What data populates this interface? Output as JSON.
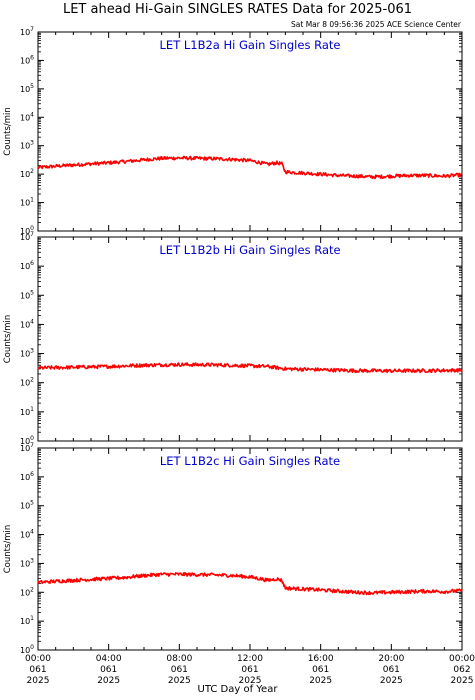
{
  "page": {
    "title": "LET ahead Hi-Gain SINGLES RATES Data for 2025-061",
    "timestamp": "Sat Mar  8 09:56:36 2025 ACE Science Center",
    "xlabel": "UTC Day of Year"
  },
  "colors": {
    "series": "#ff0000",
    "panel_title": "#0000cc",
    "axis": "#000000"
  },
  "chart_data": [
    {
      "type": "line",
      "title": "LET L1B2a Hi Gain Singles Rate",
      "ylabel": "Counts/min",
      "yscale": "log",
      "ylim": [
        1,
        10000000
      ],
      "xlim": [
        0,
        24
      ],
      "y_tick_labels": [
        "10^0",
        "10^1",
        "10^2",
        "10^3",
        "10^4",
        "10^5",
        "10^6",
        "10^7"
      ],
      "grid": false,
      "series": [
        {
          "x": [
            0,
            1,
            2,
            3,
            4,
            5,
            6,
            7,
            8,
            9,
            10,
            11,
            12,
            12.5,
            13,
            13.5,
            13.8,
            14,
            15,
            16,
            17,
            18,
            19,
            20,
            21,
            22,
            23,
            24
          ],
          "y": [
            170,
            190,
            210,
            230,
            250,
            280,
            320,
            360,
            370,
            360,
            350,
            330,
            300,
            260,
            220,
            250,
            230,
            120,
            110,
            100,
            90,
            85,
            80,
            85,
            90,
            90,
            85,
            95
          ]
        }
      ]
    },
    {
      "type": "line",
      "title": "LET L1B2b Hi Gain Singles Rate",
      "ylabel": "Counts/min",
      "yscale": "log",
      "ylim": [
        1,
        10000000
      ],
      "xlim": [
        0,
        24
      ],
      "y_tick_labels": [
        "10^0",
        "10^1",
        "10^2",
        "10^3",
        "10^4",
        "10^5",
        "10^6",
        "10^7"
      ],
      "grid": false,
      "series": [
        {
          "x": [
            0,
            2,
            4,
            6,
            8,
            10,
            12,
            13,
            14,
            16,
            18,
            20,
            22,
            24
          ],
          "y": [
            320,
            340,
            360,
            400,
            420,
            410,
            380,
            360,
            300,
            280,
            260,
            255,
            260,
            270
          ]
        }
      ]
    },
    {
      "type": "line",
      "title": "LET L1B2c Hi Gain Singles Rate",
      "ylabel": "Counts/min",
      "yscale": "log",
      "ylim": [
        1,
        10000000
      ],
      "xlim": [
        0,
        24
      ],
      "y_tick_labels": [
        "10^0",
        "10^1",
        "10^2",
        "10^3",
        "10^4",
        "10^5",
        "10^6",
        "10^7"
      ],
      "grid": false,
      "x_tick_labels": [
        [
          "00:00",
          "061",
          "2025"
        ],
        [
          "04:00",
          "061",
          "2025"
        ],
        [
          "08:00",
          "061",
          "2025"
        ],
        [
          "12:00",
          "061",
          "2025"
        ],
        [
          "16:00",
          "061",
          "2025"
        ],
        [
          "20:00",
          "061",
          "2025"
        ],
        [
          "00:00",
          "062",
          "2025"
        ]
      ],
      "x_ticks": [
        0,
        4,
        8,
        12,
        16,
        20,
        24
      ],
      "series": [
        {
          "x": [
            0,
            1,
            2,
            3,
            4,
            5,
            6,
            7,
            8,
            9,
            10,
            11,
            12,
            12.5,
            13,
            13.5,
            13.8,
            14,
            15,
            16,
            17,
            18,
            19,
            20,
            21,
            22,
            23,
            24
          ],
          "y": [
            220,
            240,
            260,
            280,
            300,
            330,
            380,
            420,
            420,
            410,
            400,
            380,
            340,
            300,
            260,
            290,
            260,
            140,
            130,
            120,
            110,
            100,
            95,
            100,
            105,
            110,
            105,
            115
          ]
        }
      ]
    }
  ]
}
